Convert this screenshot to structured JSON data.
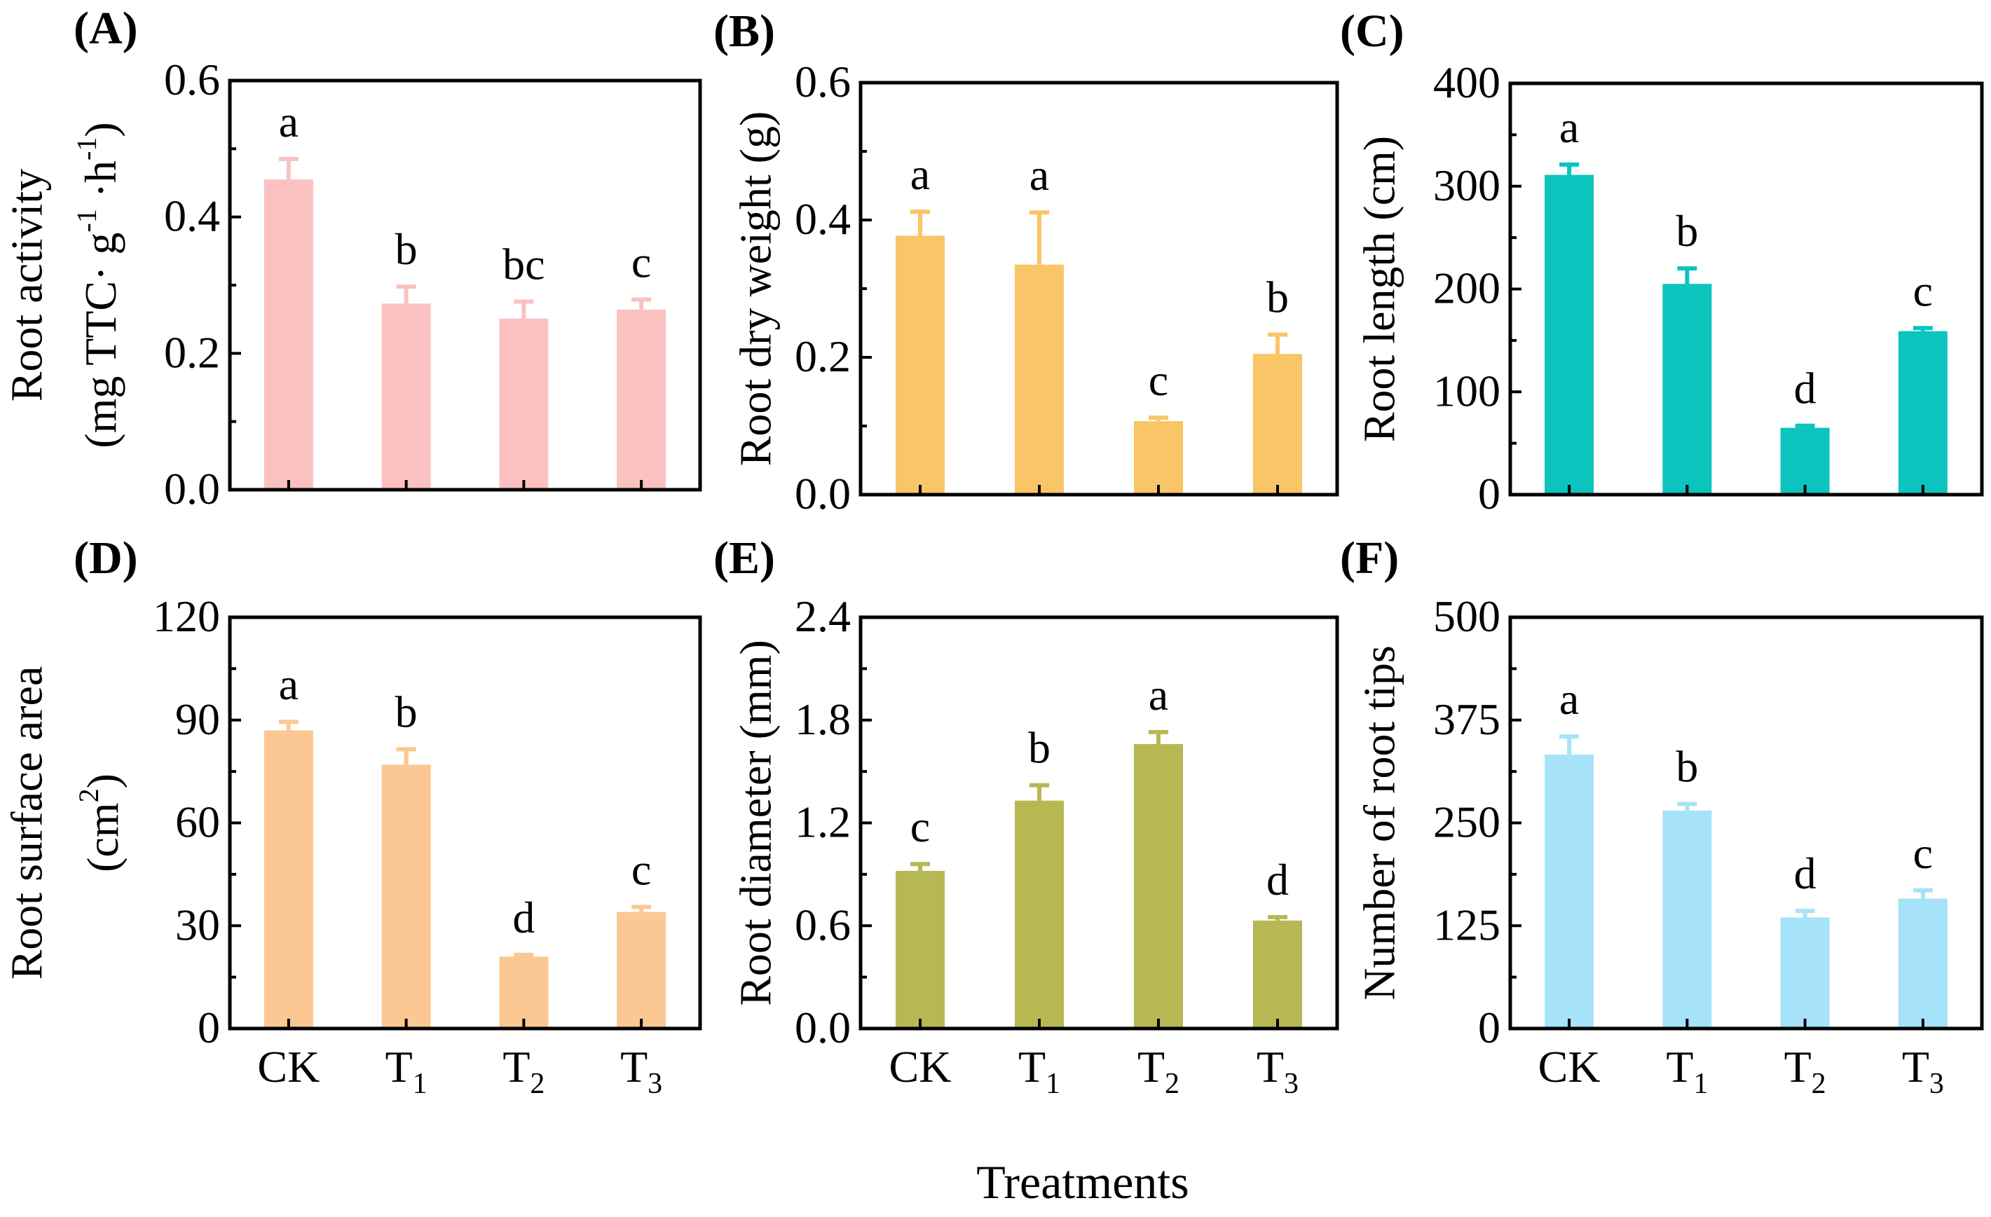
{
  "figure": {
    "xlabel": "Treatments"
  },
  "chart_data": [
    {
      "panel": "(A)",
      "type": "bar",
      "categories": [
        {
          "base": "CK",
          "sub": ""
        },
        {
          "base": "T",
          "sub": "1"
        },
        {
          "base": "T",
          "sub": "2"
        },
        {
          "base": "T",
          "sub": "3"
        }
      ],
      "values": [
        0.455,
        0.273,
        0.251,
        0.264
      ],
      "errors": [
        0.03,
        0.025,
        0.025,
        0.015
      ],
      "letters": [
        "a",
        "b",
        "bc",
        "c"
      ],
      "color": "#fbc1c1",
      "ylim": [
        0,
        0.6
      ],
      "yticks": [
        "0.0",
        "0.2",
        "0.4",
        "0.6"
      ],
      "ytick_values": [
        0,
        0.2,
        0.4,
        0.6
      ],
      "ylabel_line1": "Root activity",
      "ylabel_line2_parts": [
        "(mg TTC· g",
        "-1",
        " ·h",
        "-1",
        ")"
      ],
      "show_xticks": false
    },
    {
      "panel": "(B)",
      "type": "bar",
      "categories": [
        {
          "base": "CK",
          "sub": ""
        },
        {
          "base": "T",
          "sub": "1"
        },
        {
          "base": "T",
          "sub": "2"
        },
        {
          "base": "T",
          "sub": "3"
        }
      ],
      "values": [
        0.377,
        0.335,
        0.107,
        0.205
      ],
      "errors": [
        0.035,
        0.076,
        0.005,
        0.028
      ],
      "letters": [
        "a",
        "a",
        "c",
        "b"
      ],
      "color": "#f9c566",
      "ylim": [
        0,
        0.6
      ],
      "yticks": [
        "0.0",
        "0.2",
        "0.4",
        "0.6"
      ],
      "ytick_values": [
        0,
        0.2,
        0.4,
        0.6
      ],
      "ylabel": "Root dry weight (g)",
      "show_xticks": false
    },
    {
      "panel": "(C)",
      "type": "bar",
      "categories": [
        {
          "base": "CK",
          "sub": ""
        },
        {
          "base": "T",
          "sub": "1"
        },
        {
          "base": "T",
          "sub": "2"
        },
        {
          "base": "T",
          "sub": "3"
        }
      ],
      "values": [
        311,
        205,
        65,
        159
      ],
      "errors": [
        10,
        15,
        2,
        3
      ],
      "letters": [
        "a",
        "b",
        "d",
        "c"
      ],
      "color": "#0bc4be",
      "ylim": [
        0,
        400
      ],
      "yticks": [
        "0",
        "100",
        "200",
        "300",
        "400"
      ],
      "ytick_values": [
        0,
        100,
        200,
        300,
        400
      ],
      "ylabel": "Root length (cm)",
      "show_xticks": false
    },
    {
      "panel": "(D)",
      "type": "bar",
      "categories": [
        {
          "base": "CK",
          "sub": ""
        },
        {
          "base": "T",
          "sub": "1"
        },
        {
          "base": "T",
          "sub": "2"
        },
        {
          "base": "T",
          "sub": "3"
        }
      ],
      "values": [
        87,
        77,
        21,
        34
      ],
      "errors": [
        2.5,
        4.5,
        0.5,
        1.5
      ],
      "letters": [
        "a",
        "b",
        "d",
        "c"
      ],
      "color": "#fbc893",
      "ylim": [
        0,
        120
      ],
      "yticks": [
        "0",
        "30",
        "60",
        "90",
        "120"
      ],
      "ytick_values": [
        0,
        30,
        60,
        90,
        120
      ],
      "ylabel_line1": "Root surface area",
      "ylabel_line2_parts": [
        "(cm",
        "2",
        ")"
      ],
      "show_xticks": true
    },
    {
      "panel": "(E)",
      "type": "bar",
      "categories": [
        {
          "base": "CK",
          "sub": ""
        },
        {
          "base": "T",
          "sub": "1"
        },
        {
          "base": "T",
          "sub": "2"
        },
        {
          "base": "T",
          "sub": "3"
        }
      ],
      "values": [
        0.92,
        1.33,
        1.66,
        0.63
      ],
      "errors": [
        0.04,
        0.09,
        0.07,
        0.02
      ],
      "letters": [
        "c",
        "b",
        "a",
        "d"
      ],
      "color": "#b8b853",
      "ylim": [
        0,
        2.4
      ],
      "yticks": [
        "0.0",
        "0.6",
        "1.2",
        "1.8",
        "2.4"
      ],
      "ytick_values": [
        0,
        0.6,
        1.2,
        1.8,
        2.4
      ],
      "ylabel": "Root diameter (mm)",
      "show_xticks": true
    },
    {
      "panel": "(F)",
      "type": "bar",
      "categories": [
        {
          "base": "CK",
          "sub": ""
        },
        {
          "base": "T",
          "sub": "1"
        },
        {
          "base": "T",
          "sub": "2"
        },
        {
          "base": "T",
          "sub": "3"
        }
      ],
      "values": [
        333,
        265,
        135,
        158
      ],
      "errors": [
        22,
        8,
        8,
        10
      ],
      "letters": [
        "a",
        "b",
        "d",
        "c"
      ],
      "color": "#a6e3f9",
      "ylim": [
        0,
        500
      ],
      "yticks": [
        "0",
        "125",
        "250",
        "375",
        "500"
      ],
      "ytick_values": [
        0,
        125,
        250,
        375,
        500
      ],
      "ylabel": "Number of root tips",
      "show_xticks": true
    }
  ]
}
